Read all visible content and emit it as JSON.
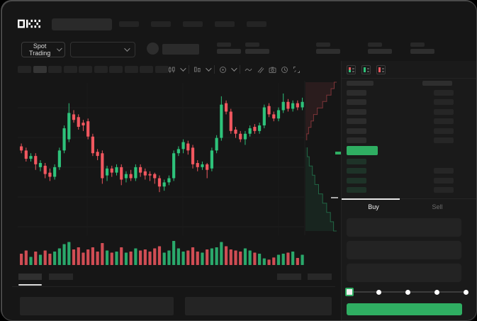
{
  "nav": {
    "logo_text": "OKX",
    "skeleton_nav_item_count": 5
  },
  "header": {
    "market_selector_label": "Spot Trading",
    "stat_skeleton_count": 5
  },
  "toolbar": {
    "timeframe_skeleton_count": 10,
    "selected_timeframe_index": 1,
    "icons": [
      "chart-type",
      "chart-compare",
      "indicators",
      "line",
      "draw",
      "camera",
      "history",
      "fullscreen"
    ]
  },
  "orderbook": {
    "view_modes": [
      "combined-book",
      "bids-only",
      "asks-only"
    ],
    "ask_row_count": 6,
    "bid_row_count": 4,
    "bid_rows_with_amount": [
      1,
      2,
      3
    ]
  },
  "trade_panel": {
    "buy_tab_label": "Buy",
    "sell_tab_label": "Sell",
    "input_count": 3,
    "slider": {
      "stop_count": 5,
      "active_stop": 0
    }
  },
  "colors": {
    "up": "#2ec27a",
    "down": "#f1575f",
    "accent_green": "#2fae62",
    "grid": "#1d1d1d",
    "depth_ask_fill": "rgba(241,87,95,0.09)",
    "depth_ask_line": "rgba(241,87,95,0.45)",
    "depth_bid_fill": "rgba(46,194,122,0.09)",
    "depth_bid_line": "rgba(46,194,122,0.45)"
  },
  "chart_data": {
    "type": "candlestick",
    "note": "skeleton trading chart; axes unlabeled; values normalized 0-100",
    "candles": [
      [
        61,
        58,
        63,
        56
      ],
      [
        58,
        52,
        60,
        50
      ],
      [
        52,
        54,
        56,
        50
      ],
      [
        54,
        48,
        56,
        44
      ],
      [
        46,
        49,
        51,
        43
      ],
      [
        47,
        41,
        49,
        38
      ],
      [
        42,
        39,
        45,
        36
      ],
      [
        39,
        46,
        48,
        37
      ],
      [
        46,
        58,
        60,
        44
      ],
      [
        58,
        74,
        76,
        56
      ],
      [
        66,
        85,
        92,
        64
      ],
      [
        84,
        80,
        87,
        78
      ],
      [
        82,
        75,
        84,
        73
      ],
      [
        78,
        76,
        80,
        72
      ],
      [
        79,
        68,
        81,
        66
      ],
      [
        68,
        56,
        70,
        54
      ],
      [
        57,
        54,
        59,
        51
      ],
      [
        56,
        38,
        58,
        34
      ],
      [
        40,
        45,
        47,
        36
      ],
      [
        45,
        42,
        47,
        39
      ],
      [
        42,
        46,
        48,
        40
      ],
      [
        46,
        37,
        48,
        33
      ],
      [
        38,
        41,
        43,
        35
      ],
      [
        41,
        38,
        44,
        36
      ],
      [
        38,
        46,
        48,
        36
      ],
      [
        46,
        42,
        48,
        39
      ],
      [
        43,
        40,
        45,
        37
      ],
      [
        41,
        40,
        43,
        36
      ],
      [
        41,
        38,
        42,
        34
      ],
      [
        38,
        32,
        40,
        28
      ],
      [
        32,
        35,
        37,
        29
      ],
      [
        35,
        38,
        40,
        33
      ],
      [
        38,
        56,
        58,
        36
      ],
      [
        56,
        59,
        61,
        54
      ],
      [
        59,
        64,
        66,
        56
      ],
      [
        63,
        58,
        65,
        55
      ],
      [
        60,
        48,
        62,
        45
      ],
      [
        49,
        46,
        51,
        43
      ],
      [
        46,
        48,
        50,
        44
      ],
      [
        48,
        44,
        49,
        38
      ],
      [
        45,
        58,
        60,
        43
      ],
      [
        58,
        67,
        69,
        56
      ],
      [
        67,
        91,
        97,
        65
      ],
      [
        92,
        86,
        94,
        84
      ],
      [
        86,
        72,
        88,
        70
      ],
      [
        73,
        70,
        75,
        67
      ],
      [
        70,
        66,
        72,
        64
      ],
      [
        66,
        70,
        72,
        62
      ],
      [
        70,
        74,
        76,
        68
      ],
      [
        75,
        72,
        77,
        70
      ],
      [
        72,
        76,
        78,
        70
      ],
      [
        76,
        89,
        91,
        74
      ],
      [
        90,
        84,
        92,
        82
      ],
      [
        84,
        81,
        86,
        79
      ],
      [
        81,
        87,
        89,
        79
      ],
      [
        87,
        93,
        99,
        85
      ],
      [
        93,
        88,
        95,
        86
      ],
      [
        88,
        92,
        94,
        86
      ],
      [
        92,
        89,
        94,
        87
      ],
      [
        89,
        93,
        96,
        87
      ]
    ],
    "volume": [
      40,
      55,
      25,
      50,
      35,
      55,
      40,
      50,
      65,
      85,
      95,
      60,
      70,
      45,
      60,
      70,
      50,
      90,
      55,
      45,
      50,
      70,
      45,
      50,
      65,
      55,
      60,
      50,
      65,
      75,
      45,
      55,
      100,
      65,
      50,
      55,
      70,
      50,
      45,
      60,
      65,
      70,
      95,
      75,
      60,
      55,
      50,
      65,
      55,
      45,
      40,
      18,
      12,
      22,
      35,
      40,
      45,
      50,
      20,
      35
    ],
    "depth": {
      "asks_cumulative": [
        0.04,
        0.1,
        0.18,
        0.26,
        0.38,
        0.55,
        0.68,
        0.82,
        0.92,
        1.0
      ],
      "bids_cumulative": [
        0.06,
        0.12,
        0.22,
        0.3,
        0.42,
        0.55,
        0.68,
        0.8,
        0.9,
        1.0
      ]
    }
  }
}
